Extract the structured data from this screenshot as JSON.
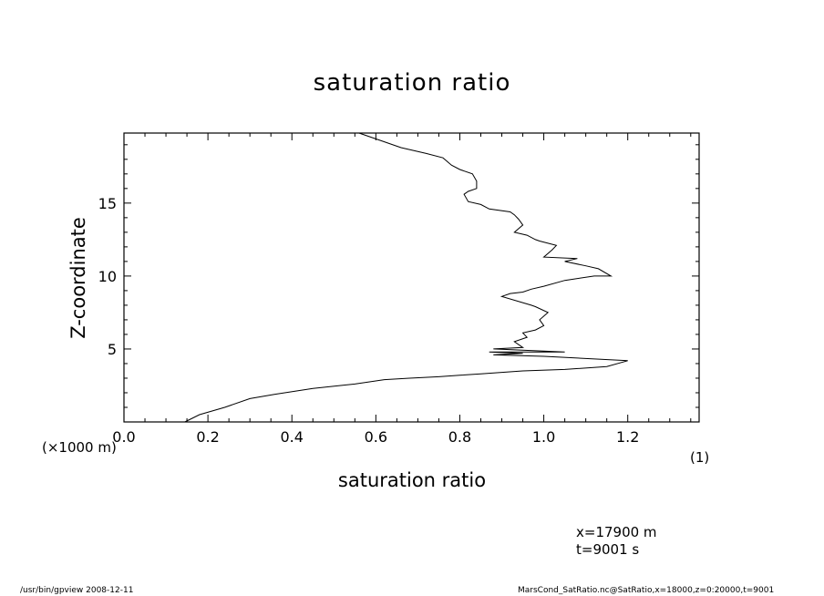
{
  "chart_data": {
    "type": "line",
    "title": "saturation ratio",
    "xlabel": "saturation ratio",
    "ylabel": "Z-coordinate",
    "y_unit_label": "(×1000 m)",
    "series_marker": "(1)",
    "xlim": [
      0.0,
      1.37
    ],
    "ylim": [
      0.0,
      19.8
    ],
    "x_ticks": [
      "0.0",
      "0.2",
      "0.4",
      "0.6",
      "0.8",
      "1.0",
      "1.2"
    ],
    "x_tick_values": [
      0.0,
      0.2,
      0.4,
      0.6,
      0.8,
      1.0,
      1.2
    ],
    "y_ticks": [
      "5",
      "10",
      "15"
    ],
    "y_tick_values": [
      5,
      10,
      15
    ],
    "grid": false,
    "series": [
      {
        "x": [
          0.145,
          0.18,
          0.24,
          0.3,
          0.36,
          0.45,
          0.55,
          0.62,
          0.68,
          0.75,
          0.8,
          0.85,
          0.9,
          0.95,
          1.05,
          1.15,
          1.2,
          1.0,
          0.88,
          0.95,
          0.87,
          1.05,
          0.88,
          0.95,
          0.93,
          0.96,
          0.95,
          0.98,
          1.0,
          0.99,
          1.01,
          0.98,
          0.97,
          0.9,
          0.92,
          0.95,
          0.97,
          1.0,
          1.05,
          1.12,
          1.16,
          1.13,
          1.1,
          1.05,
          1.08,
          1.0,
          1.02,
          1.03,
          0.99,
          0.98,
          0.96,
          0.93,
          0.95,
          0.94,
          0.93,
          0.92,
          0.87,
          0.85,
          0.82,
          0.81,
          0.82,
          0.84,
          0.84,
          0.83,
          0.8,
          0.78,
          0.76,
          0.72,
          0.66,
          0.61,
          0.56
        ],
        "y": [
          0.0,
          0.5,
          1.0,
          1.6,
          1.9,
          2.3,
          2.6,
          2.9,
          3.0,
          3.1,
          3.2,
          3.3,
          3.4,
          3.5,
          3.6,
          3.8,
          4.2,
          4.5,
          4.6,
          4.7,
          4.8,
          4.8,
          5.0,
          5.1,
          5.5,
          5.8,
          6.1,
          6.3,
          6.6,
          7.0,
          7.5,
          7.9,
          8.0,
          8.6,
          8.8,
          8.9,
          9.1,
          9.3,
          9.7,
          10.0,
          10.0,
          10.5,
          10.7,
          11.0,
          11.2,
          11.3,
          11.8,
          12.1,
          12.4,
          12.5,
          12.8,
          13.0,
          13.5,
          13.9,
          14.2,
          14.4,
          14.6,
          14.9,
          15.1,
          15.6,
          15.8,
          16.0,
          16.5,
          17.0,
          17.3,
          17.6,
          18.1,
          18.4,
          18.8,
          19.3,
          19.8
        ]
      }
    ]
  },
  "annotations": {
    "info_x": "x=17900  m",
    "info_t": "t=9001  s"
  },
  "footer": {
    "left": "/usr/bin/gpview   2008-12-11",
    "right": "MarsCond_SatRatio.nc@SatRatio,x=18000,z=0:20000,t=9001"
  }
}
